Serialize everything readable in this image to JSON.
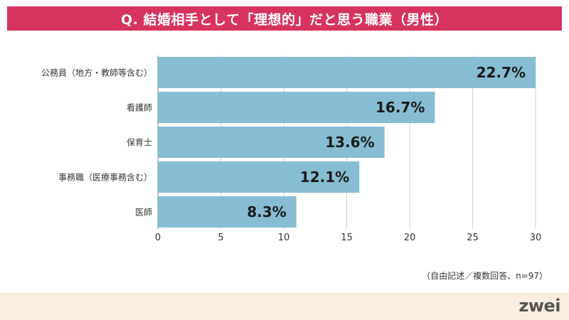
{
  "title": "Q. 結婚相手として「理想的」だと思う職業（男性）",
  "note": "（自由記述／複数回答、n=97）",
  "logo": "zwei",
  "colors": {
    "banner": "#d6335f",
    "bar": "#86bdd3",
    "grid": "#d0d0d0",
    "axis": "#888888",
    "footer": "#fbeee0"
  },
  "chart_data": {
    "type": "bar",
    "orientation": "horizontal",
    "title": "Q. 結婚相手として「理想的」だと思う職業（男性）",
    "categories": [
      "公務員（地方・教師等含む）",
      "看護師",
      "保育士",
      "事務職（医療事務含む）",
      "医師"
    ],
    "values": [
      22.7,
      16.7,
      13.6,
      12.1,
      8.3
    ],
    "value_labels": [
      "22.7%",
      "16.7%",
      "13.6%",
      "12.1%",
      "8.3%"
    ],
    "bar_lengths": [
      30,
      22,
      18,
      16,
      11
    ],
    "xlim": [
      0,
      30
    ],
    "xticks": [
      0,
      5,
      10,
      15,
      20,
      25,
      30
    ],
    "grid": "vertical",
    "legend": "none"
  }
}
